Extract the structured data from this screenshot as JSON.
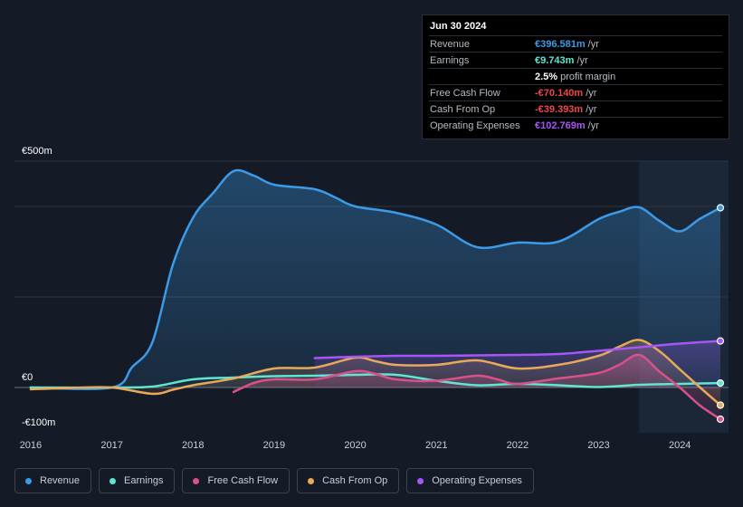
{
  "tooltip": {
    "date": "Jun 30 2024",
    "rows": [
      {
        "label": "Revenue",
        "value": "€396.581m",
        "unit": "/yr",
        "color": "#3b9be8"
      },
      {
        "label": "Earnings",
        "value": "€9.743m",
        "unit": "/yr",
        "color": "#5ee6d0"
      },
      {
        "label": "",
        "value": "2.5%",
        "unit": "profit margin",
        "color": "#ffffff"
      },
      {
        "label": "Free Cash Flow",
        "value": "-€70.140m",
        "unit": "/yr",
        "color": "#f0454e"
      },
      {
        "label": "Cash From Op",
        "value": "-€39.393m",
        "unit": "/yr",
        "color": "#f0454e"
      },
      {
        "label": "Operating Expenses",
        "value": "€102.769m",
        "unit": "/yr",
        "color": "#a855f7"
      }
    ]
  },
  "legend": [
    {
      "label": "Revenue",
      "color": "#3b9be8"
    },
    {
      "label": "Earnings",
      "color": "#5ee6d0"
    },
    {
      "label": "Free Cash Flow",
      "color": "#d9508b"
    },
    {
      "label": "Cash From Op",
      "color": "#e8a95b"
    },
    {
      "label": "Operating Expenses",
      "color": "#a855f7"
    }
  ],
  "chart_data": {
    "type": "line",
    "title": "",
    "xlabel": "",
    "ylabel": "",
    "ylim": [
      -100,
      500
    ],
    "ytick_labels": [
      {
        "value": 500,
        "label": "€500m"
      },
      {
        "value": 0,
        "label": "€0"
      },
      {
        "value": -100,
        "label": "-€100m"
      }
    ],
    "gridlines": [
      500,
      400,
      200,
      0
    ],
    "xlim": [
      2015.8,
      2024.6
    ],
    "xticks": [
      2016,
      2017,
      2018,
      2019,
      2020,
      2021,
      2022,
      2023,
      2024
    ],
    "xtick_labels": [
      "2016",
      "2017",
      "2018",
      "2019",
      "2020",
      "2021",
      "2022",
      "2023",
      "2024"
    ],
    "highlight_start": 2023.5,
    "series": [
      {
        "name": "Revenue",
        "color": "#3b9be8",
        "fill": true,
        "points": [
          [
            2016,
            0
          ],
          [
            2017,
            0
          ],
          [
            2017.25,
            45
          ],
          [
            2017.5,
            100
          ],
          [
            2017.75,
            270
          ],
          [
            2018,
            375
          ],
          [
            2018.25,
            430
          ],
          [
            2018.5,
            478
          ],
          [
            2018.75,
            468
          ],
          [
            2019,
            448
          ],
          [
            2019.5,
            438
          ],
          [
            2019.75,
            420
          ],
          [
            2020,
            400
          ],
          [
            2020.5,
            386
          ],
          [
            2021,
            360
          ],
          [
            2021.5,
            310
          ],
          [
            2022,
            320
          ],
          [
            2022.5,
            322
          ],
          [
            2023,
            372
          ],
          [
            2023.25,
            388
          ],
          [
            2023.5,
            398
          ],
          [
            2023.75,
            368
          ],
          [
            2024,
            345
          ],
          [
            2024.25,
            373
          ],
          [
            2024.5,
            397
          ]
        ]
      },
      {
        "name": "Earnings",
        "color": "#5ee6d0",
        "fill": false,
        "points": [
          [
            2016,
            0
          ],
          [
            2017,
            0
          ],
          [
            2017.5,
            2
          ],
          [
            2018,
            18
          ],
          [
            2018.5,
            22
          ],
          [
            2019,
            25
          ],
          [
            2019.5,
            26
          ],
          [
            2020,
            28
          ],
          [
            2020.5,
            28
          ],
          [
            2021,
            15
          ],
          [
            2021.5,
            5
          ],
          [
            2022,
            8
          ],
          [
            2022.5,
            5
          ],
          [
            2023,
            1
          ],
          [
            2023.5,
            6
          ],
          [
            2024,
            8
          ],
          [
            2024.5,
            9.7
          ]
        ]
      },
      {
        "name": "Free Cash Flow",
        "color": "#d9508b",
        "fill": true,
        "points": [
          [
            2018.5,
            -10
          ],
          [
            2018.75,
            10
          ],
          [
            2019,
            18
          ],
          [
            2019.5,
            18
          ],
          [
            2020,
            36
          ],
          [
            2020.25,
            30
          ],
          [
            2020.5,
            18
          ],
          [
            2021,
            15
          ],
          [
            2021.5,
            26
          ],
          [
            2021.75,
            18
          ],
          [
            2022,
            8
          ],
          [
            2022.5,
            20
          ],
          [
            2023,
            32
          ],
          [
            2023.25,
            50
          ],
          [
            2023.5,
            72
          ],
          [
            2023.75,
            35
          ],
          [
            2024,
            0
          ],
          [
            2024.25,
            -40
          ],
          [
            2024.5,
            -70
          ]
        ]
      },
      {
        "name": "Cash From Op",
        "color": "#e8a95b",
        "fill": true,
        "points": [
          [
            2016,
            -4
          ],
          [
            2016.5,
            -1
          ],
          [
            2017,
            0
          ],
          [
            2017.5,
            -14
          ],
          [
            2017.75,
            -5
          ],
          [
            2018,
            5
          ],
          [
            2018.5,
            20
          ],
          [
            2019,
            42
          ],
          [
            2019.5,
            44
          ],
          [
            2020,
            66
          ],
          [
            2020.25,
            58
          ],
          [
            2020.5,
            50
          ],
          [
            2021,
            50
          ],
          [
            2021.5,
            60
          ],
          [
            2022,
            42
          ],
          [
            2022.5,
            50
          ],
          [
            2023,
            70
          ],
          [
            2023.25,
            90
          ],
          [
            2023.5,
            105
          ],
          [
            2023.75,
            80
          ],
          [
            2024,
            40
          ],
          [
            2024.25,
            0
          ],
          [
            2024.5,
            -39
          ]
        ]
      },
      {
        "name": "Operating Expenses",
        "color": "#a855f7",
        "fill": true,
        "points": [
          [
            2019.5,
            65
          ],
          [
            2020,
            68
          ],
          [
            2020.5,
            70
          ],
          [
            2021,
            70
          ],
          [
            2021.5,
            71
          ],
          [
            2022,
            72
          ],
          [
            2022.5,
            74
          ],
          [
            2023,
            81
          ],
          [
            2023.5,
            89
          ],
          [
            2024,
            97
          ],
          [
            2024.5,
            102.8
          ]
        ]
      }
    ]
  }
}
